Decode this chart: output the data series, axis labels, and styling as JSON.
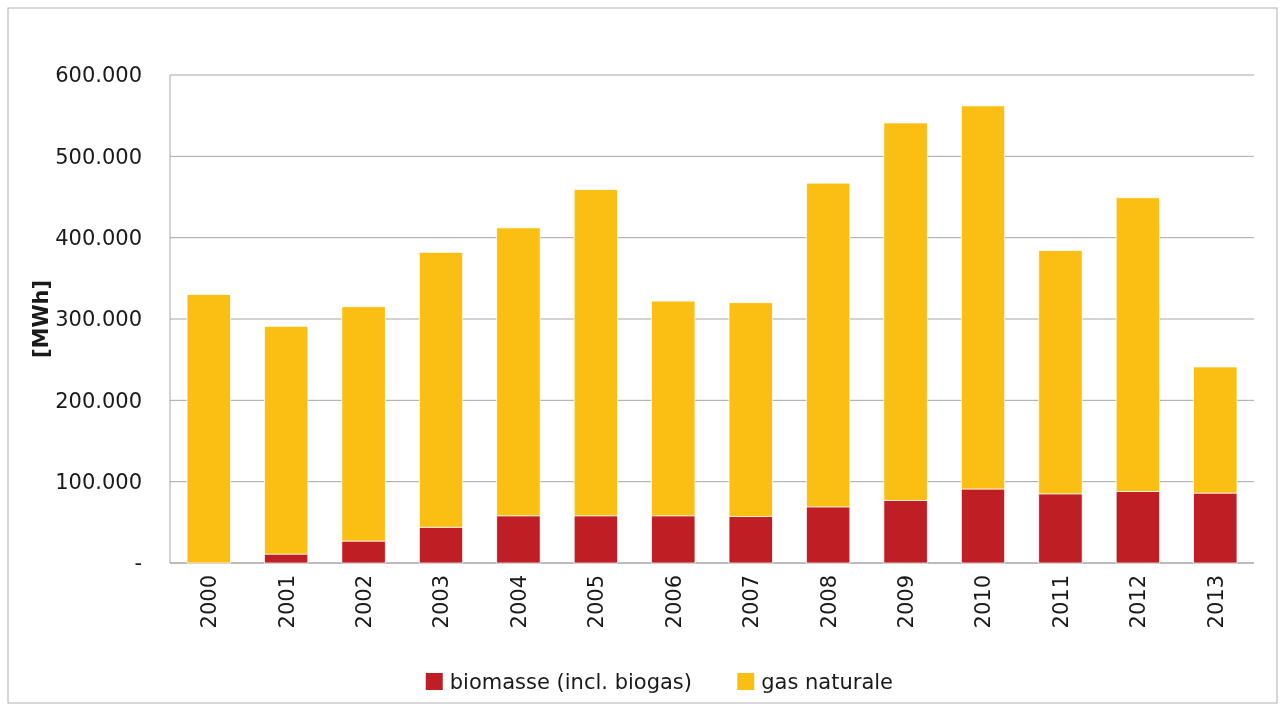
{
  "chart_data": {
    "type": "bar",
    "ylabel": "[MWh]",
    "stacked": true,
    "grid": "y",
    "legend": "bottom",
    "categories": [
      "2000",
      "2001",
      "2002",
      "2003",
      "2004",
      "2005",
      "2006",
      "2007",
      "2008",
      "2009",
      "2010",
      "2011",
      "2012",
      "2013"
    ],
    "series": [
      {
        "name": "biomasse (incl. biogas)",
        "color": "#be1e24",
        "values": [
          0,
          11000,
          27000,
          44000,
          58000,
          58000,
          58000,
          57000,
          69000,
          77000,
          91000,
          85000,
          88000,
          86000
        ]
      },
      {
        "name": "gas naturale",
        "color": "#fbbf14",
        "values": [
          330000,
          280000,
          288000,
          338000,
          354000,
          401000,
          264000,
          263000,
          398000,
          464000,
          471000,
          299000,
          361000,
          155000
        ]
      }
    ],
    "ylim": [
      0,
      600000
    ],
    "yticks": [
      {
        "value": 0,
        "label": "-"
      },
      {
        "value": 100000,
        "label": "100.000"
      },
      {
        "value": 200000,
        "label": "200.000"
      },
      {
        "value": 300000,
        "label": "300.000"
      },
      {
        "value": 400000,
        "label": "400.000"
      },
      {
        "value": 500000,
        "label": "500.000"
      },
      {
        "value": 600000,
        "label": "600.000"
      }
    ]
  }
}
